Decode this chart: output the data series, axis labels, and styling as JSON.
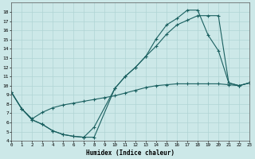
{
  "xlabel": "Humidex (Indice chaleur)",
  "xlim": [
    0,
    23
  ],
  "ylim": [
    4,
    19
  ],
  "yticks": [
    4,
    5,
    6,
    7,
    8,
    9,
    10,
    11,
    12,
    13,
    14,
    15,
    16,
    17,
    18
  ],
  "xticks": [
    0,
    1,
    2,
    3,
    4,
    5,
    6,
    7,
    8,
    9,
    10,
    11,
    12,
    13,
    14,
    15,
    16,
    17,
    18,
    19,
    20,
    21,
    22,
    23
  ],
  "bg_color": "#cce8e8",
  "line_color": "#1a6060",
  "grid_color": "#b0d4d4",
  "curve1_x": [
    0,
    1,
    2,
    3,
    4,
    5,
    6,
    7,
    8,
    10,
    11,
    12,
    13,
    14,
    15,
    16,
    17,
    18,
    19,
    20,
    21,
    22,
    23
  ],
  "curve1_y": [
    9.3,
    7.5,
    6.3,
    5.8,
    5.1,
    4.7,
    4.5,
    4.4,
    4.4,
    9.7,
    11.0,
    12.0,
    13.2,
    15.1,
    16.6,
    17.3,
    18.2,
    18.2,
    15.5,
    13.8,
    10.3,
    10.0,
    10.3
  ],
  "curve2_x": [
    0,
    1,
    2,
    3,
    4,
    5,
    6,
    7,
    8,
    10,
    11,
    12,
    13,
    14,
    15,
    16,
    17,
    18,
    19,
    20,
    21,
    22,
    23
  ],
  "curve2_y": [
    9.3,
    7.5,
    6.3,
    5.8,
    5.1,
    4.7,
    4.5,
    4.4,
    5.5,
    9.7,
    11.0,
    12.0,
    13.2,
    14.3,
    15.6,
    16.6,
    17.1,
    17.6,
    17.6,
    17.6,
    10.3,
    10.0,
    10.3
  ],
  "curve3_x": [
    0,
    1,
    2,
    3,
    4,
    5,
    6,
    7,
    8,
    9,
    10,
    11,
    12,
    13,
    14,
    15,
    16,
    17,
    18,
    19,
    20,
    21,
    22,
    23
  ],
  "curve3_y": [
    9.3,
    7.5,
    6.4,
    7.1,
    7.6,
    7.9,
    8.1,
    8.3,
    8.5,
    8.7,
    8.9,
    9.2,
    9.5,
    9.8,
    10.0,
    10.1,
    10.2,
    10.2,
    10.2,
    10.2,
    10.2,
    10.1,
    10.0,
    10.3
  ]
}
